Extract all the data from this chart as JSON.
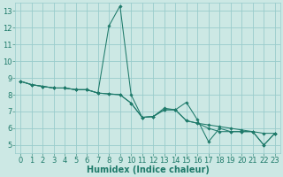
{
  "title": "",
  "xlabel": "Humidex (Indice chaleur)",
  "background_color": "#cce8e4",
  "grid_color": "#99cccc",
  "line_color": "#1e7a6a",
  "x_data": [
    0,
    1,
    2,
    3,
    4,
    5,
    6,
    7,
    8,
    9,
    10,
    11,
    12,
    13,
    14,
    15,
    16,
    17,
    18,
    19,
    20,
    21,
    22,
    23
  ],
  "y_series1": [
    8.8,
    8.6,
    8.5,
    8.4,
    8.4,
    8.3,
    8.3,
    8.1,
    12.1,
    13.3,
    8.0,
    6.65,
    6.7,
    7.1,
    7.1,
    7.55,
    6.5,
    5.2,
    6.0,
    5.8,
    5.8,
    5.8,
    5.0,
    5.7
  ],
  "y_series2": [
    8.8,
    8.6,
    8.5,
    8.4,
    8.4,
    8.3,
    8.3,
    8.1,
    8.05,
    8.0,
    7.5,
    6.65,
    6.7,
    7.1,
    7.1,
    6.45,
    6.3,
    6.2,
    6.1,
    6.0,
    5.9,
    5.8,
    5.7,
    5.7
  ],
  "y_series3": [
    8.8,
    8.6,
    8.5,
    8.4,
    8.4,
    8.3,
    8.3,
    8.1,
    8.05,
    8.0,
    7.5,
    6.65,
    6.7,
    7.2,
    7.1,
    6.45,
    6.3,
    6.0,
    5.8,
    5.8,
    5.8,
    5.8,
    5.0,
    5.7
  ],
  "ylim": [
    4.5,
    13.5
  ],
  "xlim": [
    -0.5,
    23.5
  ],
  "yticks": [
    5,
    6,
    7,
    8,
    9,
    10,
    11,
    12,
    13
  ],
  "xticks": [
    0,
    1,
    2,
    3,
    4,
    5,
    6,
    7,
    8,
    9,
    10,
    11,
    12,
    13,
    14,
    15,
    16,
    17,
    18,
    19,
    20,
    21,
    22,
    23
  ],
  "figsize": [
    3.2,
    2.0
  ],
  "dpi": 100,
  "font_size": 6.5,
  "marker": "D",
  "marker_size": 1.8,
  "lw": 0.75
}
